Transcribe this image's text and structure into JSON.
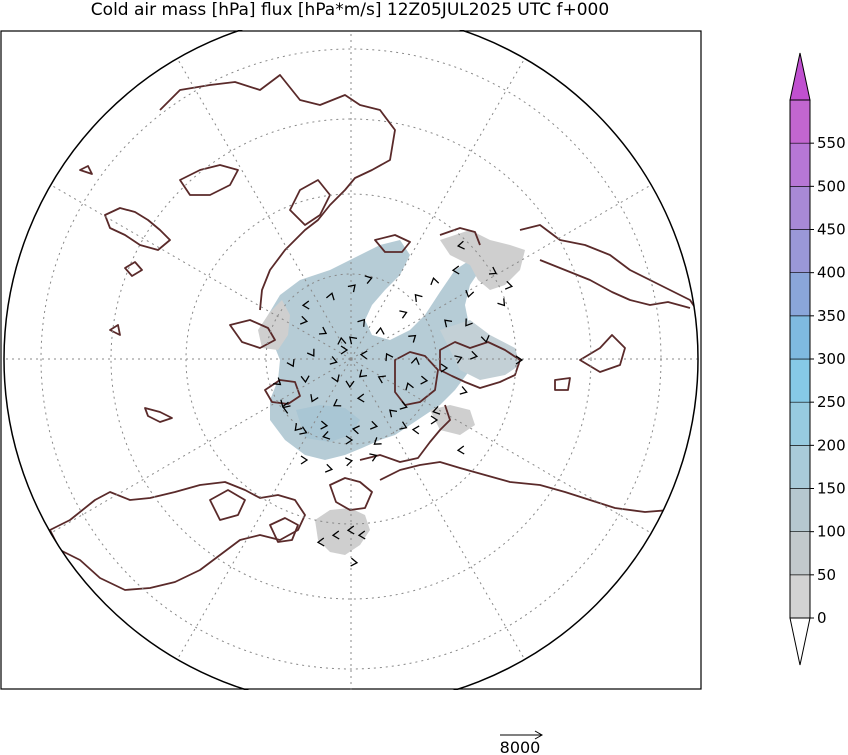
{
  "title": "Cold air mass [hPa] flux [hPa*m/s] 12Z05JUL2025 UTC f+000",
  "colors": {
    "coastline": "#5a2a2a",
    "gridline": "#888888",
    "arrow": "#000000",
    "low_mass": "#cfcfcf",
    "mid_mass": "#b4cdd8"
  },
  "colorbar": {
    "ticks": [
      "0",
      "50",
      "100",
      "150",
      "200",
      "250",
      "300",
      "350",
      "400",
      "450",
      "500",
      "550"
    ],
    "colors": [
      "#d3d3d3",
      "#c2c9cc",
      "#b6c8d0",
      "#a9cbd9",
      "#97cbe0",
      "#86c9e6",
      "#7fbae0",
      "#8aa6da",
      "#9a98d8",
      "#a889d6",
      "#b777d6",
      "#c266d0"
    ],
    "extend_low_color": "#ffffff",
    "extend_high_color": "#c050d0"
  },
  "reference_vector": {
    "label": "8000"
  }
}
